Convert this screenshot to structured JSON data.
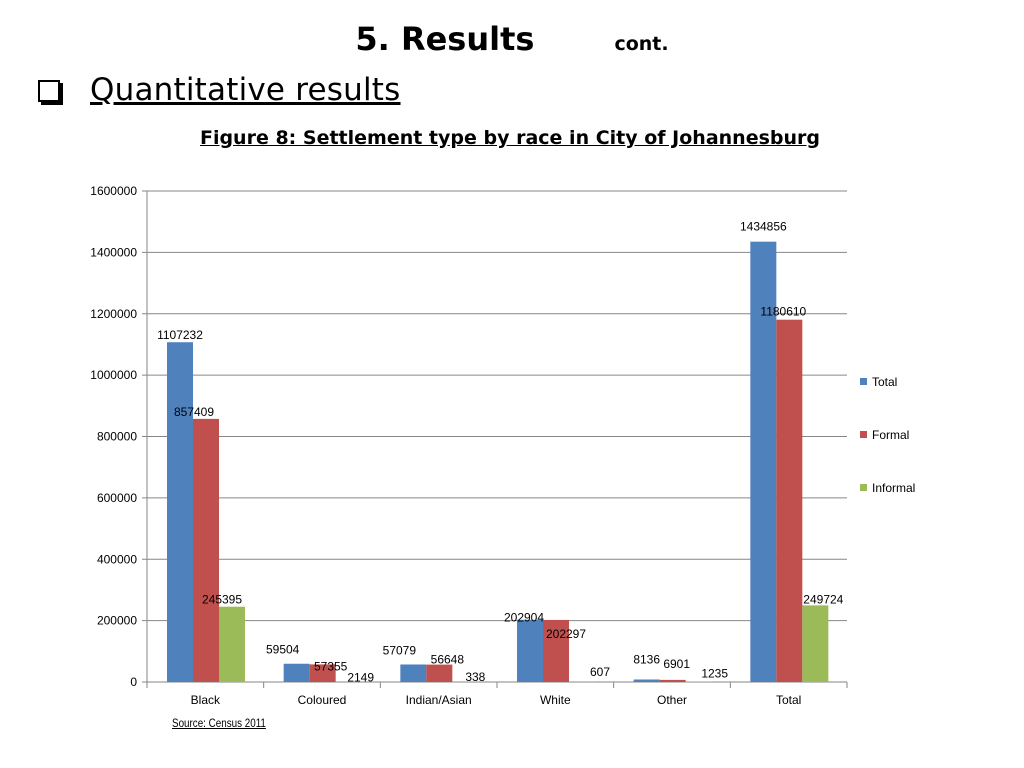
{
  "slide": {
    "title": "5.  Results",
    "title_suffix": "cont.",
    "bullet": "Quantitative results",
    "figure_caption": "Figure 8:  Settlement type by race in City of Johannesburg",
    "source": "Source: Census 2011"
  },
  "chart_data": {
    "type": "bar",
    "title": "",
    "xlabel": "",
    "ylabel": "",
    "categories": [
      "Black",
      "Coloured",
      "Indian/Asian",
      "White",
      "Other",
      "Total"
    ],
    "series": [
      {
        "name": "Total",
        "color": "#4F81BD",
        "values": [
          1107232,
          59504,
          57079,
          202904,
          8136,
          1434856
        ]
      },
      {
        "name": "Formal",
        "color": "#C0504D",
        "values": [
          857409,
          57355,
          56648,
          202297,
          6901,
          1180610
        ]
      },
      {
        "name": "Informal",
        "color": "#9BBB59",
        "values": [
          245395,
          2149,
          338,
          607,
          1235,
          249724
        ]
      }
    ],
    "ylim": [
      0,
      1600000
    ],
    "yticks": [
      0,
      200000,
      400000,
      600000,
      800000,
      1000000,
      1200000,
      1400000,
      1600000
    ],
    "grid": true,
    "legend_position": "right"
  }
}
